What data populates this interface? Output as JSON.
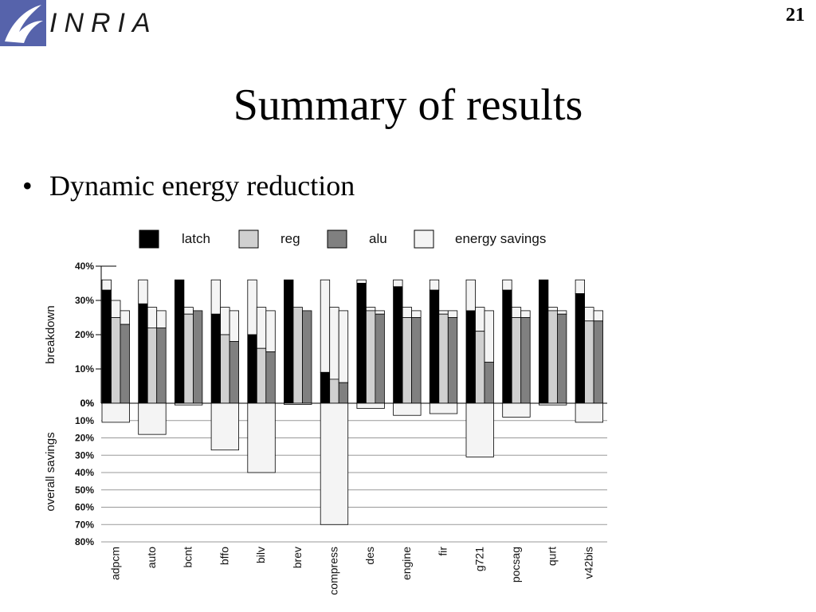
{
  "header": {
    "logo_text": "INRIA",
    "page_number": "21"
  },
  "slide": {
    "title": "Summary of results",
    "bullet": "Dynamic energy reduction"
  },
  "colors": {
    "latch": "#000000",
    "reg": "#d0d0d0",
    "alu": "#808080",
    "energy_savings": "#f4f4f4",
    "grid": "#999999"
  },
  "chart_data": {
    "type": "bar",
    "subtype": "stacked-grouped",
    "legend": {
      "placement": "top",
      "entries": [
        {
          "key": "latch",
          "label": "latch"
        },
        {
          "key": "reg",
          "label": "reg"
        },
        {
          "key": "alu",
          "label": "alu"
        },
        {
          "key": "savings",
          "label": "energy savings"
        }
      ]
    },
    "top_panel": {
      "ylabel": "breakdown",
      "ylim": [
        0,
        40
      ],
      "ticks": [
        "0%",
        "10%",
        "20%",
        "30%",
        "40%"
      ],
      "groups": [
        {
          "name": "adpcm",
          "latch": [
            33,
            36
          ],
          "reg": [
            25,
            30
          ],
          "alu": [
            23,
            27
          ]
        },
        {
          "name": "auto",
          "latch": [
            29,
            36
          ],
          "reg": [
            22,
            28
          ],
          "alu": [
            22,
            27
          ]
        },
        {
          "name": "bcnt",
          "latch": [
            36,
            36
          ],
          "reg": [
            26,
            28
          ],
          "alu": [
            27,
            27
          ]
        },
        {
          "name": "bffo",
          "latch": [
            26,
            36
          ],
          "reg": [
            20,
            28
          ],
          "alu": [
            18,
            27
          ]
        },
        {
          "name": "bilv",
          "latch": [
            20,
            36
          ],
          "reg": [
            16,
            28
          ],
          "alu": [
            15,
            27
          ]
        },
        {
          "name": "brev",
          "latch": [
            36,
            36
          ],
          "reg": [
            28,
            28
          ],
          "alu": [
            27,
            27
          ]
        },
        {
          "name": "compress",
          "latch": [
            9,
            36
          ],
          "reg": [
            7,
            28
          ],
          "alu": [
            6,
            27
          ]
        },
        {
          "name": "des",
          "latch": [
            35,
            36
          ],
          "reg": [
            27,
            28
          ],
          "alu": [
            26,
            27
          ]
        },
        {
          "name": "engine",
          "latch": [
            34,
            36
          ],
          "reg": [
            25,
            28
          ],
          "alu": [
            25,
            27
          ]
        },
        {
          "name": "fir",
          "latch": [
            33,
            36
          ],
          "reg": [
            26,
            27
          ],
          "alu": [
            25,
            27
          ]
        },
        {
          "name": "g721",
          "latch": [
            27,
            36
          ],
          "reg": [
            21,
            28
          ],
          "alu": [
            12,
            27
          ]
        },
        {
          "name": "pocsag",
          "latch": [
            33,
            36
          ],
          "reg": [
            25,
            28
          ],
          "alu": [
            25,
            27
          ]
        },
        {
          "name": "qurt",
          "latch": [
            36,
            36
          ],
          "reg": [
            27,
            28
          ],
          "alu": [
            26,
            27
          ]
        },
        {
          "name": "v42bis",
          "latch": [
            32,
            36
          ],
          "reg": [
            24,
            28
          ],
          "alu": [
            24,
            27
          ]
        }
      ]
    },
    "bottom_panel": {
      "ylabel": "overall savings",
      "ylim": [
        0,
        80
      ],
      "ticks": [
        "10%",
        "20%",
        "30%",
        "40%",
        "50%",
        "60%",
        "70%",
        "80%"
      ],
      "values": [
        11,
        18,
        1,
        27,
        40,
        0,
        70,
        3,
        7,
        6,
        31,
        8,
        1,
        11
      ]
    },
    "categories": [
      "adpcm",
      "auto",
      "bcnt",
      "bffo",
      "bilv",
      "brev",
      "compress",
      "des",
      "engine",
      "fir",
      "g721",
      "pocsag",
      "qurt",
      "v42bis"
    ]
  }
}
